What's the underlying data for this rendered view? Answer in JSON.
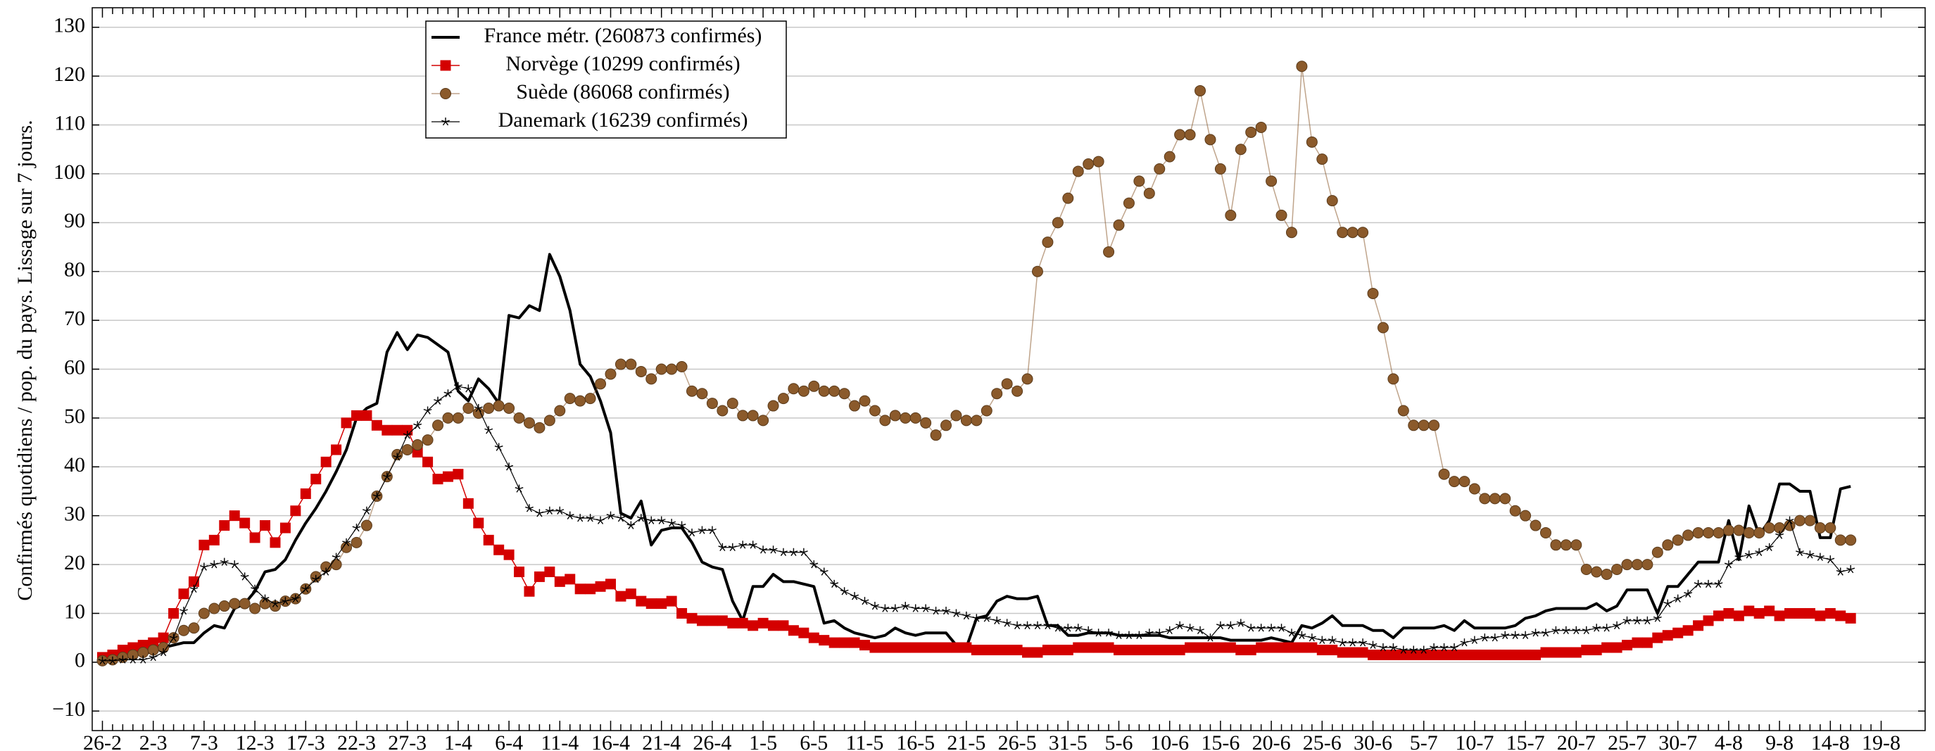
{
  "chart_data": {
    "type": "line",
    "y_label": "Confirmés quotidiens / pop. du pays. Lissage sur 7 jours.",
    "categories": [
      "26-2",
      null,
      null,
      null,
      null,
      "2-3",
      null,
      null,
      null,
      null,
      "7-3",
      null,
      null,
      null,
      null,
      "12-3",
      null,
      null,
      null,
      null,
      "17-3",
      null,
      null,
      null,
      null,
      "22-3",
      null,
      null,
      null,
      null,
      "27-3",
      null,
      null,
      null,
      null,
      "1-4",
      null,
      null,
      null,
      null,
      "6-4",
      null,
      null,
      null,
      null,
      "11-4",
      null,
      null,
      null,
      null,
      "16-4",
      null,
      null,
      null,
      null,
      "21-4",
      null,
      null,
      null,
      null,
      "26-4",
      null,
      null,
      null,
      null,
      "1-5",
      null,
      null,
      null,
      null,
      "6-5",
      null,
      null,
      null,
      null,
      "11-5",
      null,
      null,
      null,
      null,
      "16-5",
      null,
      null,
      null,
      null,
      "21-5",
      null,
      null,
      null,
      null,
      "26-5",
      null,
      null,
      null,
      null,
      "31-5",
      null,
      null,
      null,
      null,
      "5-6",
      null,
      null,
      null,
      null,
      "10-6",
      null,
      null,
      null,
      null,
      "15-6",
      null,
      null,
      null,
      null,
      "20-6",
      null,
      null,
      null,
      null,
      "25-6",
      null,
      null,
      null,
      null,
      "30-6",
      null,
      null,
      null,
      null,
      "5-7",
      null,
      null,
      null,
      null,
      "10-7",
      null,
      null,
      null,
      null,
      "15-7",
      null,
      null,
      null,
      null,
      "20-7",
      null,
      null,
      null,
      null,
      "25-7",
      null,
      null,
      null,
      null,
      "30-7",
      null,
      null,
      null,
      null,
      "4-8",
      null,
      null,
      null,
      null,
      "9-8",
      null,
      null,
      null,
      null,
      "14-8",
      null,
      null,
      null,
      null,
      "19-8"
    ],
    "series": [
      {
        "name": "France métr. (260873 confirmés)",
        "color": "#000000",
        "marker": "none",
        "line_width": 4,
        "values": [
          0.3,
          0.5,
          1,
          1.5,
          2,
          2,
          3,
          3.5,
          4,
          4,
          6,
          7.5,
          7,
          11,
          12,
          14.5,
          18.5,
          19,
          21,
          25,
          28.5,
          31.5,
          35,
          39,
          43.5,
          50,
          52,
          53,
          63.5,
          67.5,
          64,
          67,
          66.5,
          65,
          63.5,
          55.5,
          53.5,
          58,
          56,
          53,
          71,
          70.5,
          73,
          72,
          83.5,
          79,
          72,
          61,
          58.5,
          53.5,
          47,
          30.5,
          29.5,
          33,
          24,
          27,
          27.5,
          27.5,
          24.5,
          20.5,
          19.5,
          19,
          12.5,
          8.5,
          15.5,
          15.5,
          18,
          16.5,
          16.5,
          16,
          15.5,
          8,
          8.5,
          7,
          6,
          5.5,
          5,
          5.5,
          7,
          6,
          5.5,
          6,
          6,
          6,
          3.5,
          3,
          9,
          9.5,
          12.5,
          13.5,
          13,
          13,
          13.5,
          7.5,
          7.5,
          5.5,
          5.5,
          6,
          6,
          6,
          5.5,
          5.5,
          5.5,
          5.5,
          5.5,
          5,
          5,
          5,
          5,
          5,
          5,
          4.5,
          4.5,
          4.5,
          4.5,
          5,
          4.5,
          4,
          7.5,
          7,
          8,
          9.5,
          7.5,
          7.5,
          7.5,
          6.5,
          6.5,
          5,
          7,
          7,
          7,
          7,
          7.5,
          6.5,
          8.5,
          7,
          7,
          7,
          7,
          7.5,
          9,
          9.5,
          10.5,
          11,
          11,
          11,
          11,
          12,
          10.5,
          11.5,
          14.8,
          14.8,
          14.8,
          10,
          15.5,
          15.5,
          18,
          20.5,
          20.5,
          20.5,
          29,
          21,
          32,
          26,
          29,
          36.5,
          36.5,
          35,
          35,
          25.5,
          25.5,
          35.5,
          36,
          null,
          null,
          null
        ]
      },
      {
        "name": "Norvège (10299 confirmés)",
        "color": "#d40000",
        "marker": "square",
        "line_width": 1.5,
        "values": [
          1,
          1.5,
          2.5,
          3,
          3.5,
          4,
          5,
          10,
          14,
          16.5,
          24,
          25,
          28,
          30,
          28.5,
          25.5,
          28,
          24.5,
          27.5,
          31,
          34.5,
          37.5,
          41,
          43.5,
          49,
          50.5,
          50.5,
          48.5,
          47.5,
          47.5,
          47.5,
          43,
          41,
          37.5,
          38,
          38.5,
          32.5,
          28.5,
          25,
          23,
          22,
          18.5,
          14.5,
          17.5,
          18.5,
          16.5,
          17,
          15,
          15,
          15.5,
          16,
          13.5,
          14,
          12.5,
          12,
          12,
          12.5,
          10,
          9,
          8.5,
          8.5,
          8.5,
          8,
          8,
          7.5,
          8,
          7.5,
          7.5,
          6.5,
          6,
          5,
          4.5,
          4,
          4,
          4,
          3.5,
          3,
          3,
          3,
          3,
          3,
          3,
          3,
          3,
          3,
          3,
          2.5,
          2.5,
          2.5,
          2.5,
          2.5,
          2,
          2,
          2.5,
          2.5,
          2.5,
          3,
          3,
          3,
          3,
          2.5,
          2.5,
          2.5,
          2.5,
          2.5,
          2.5,
          2.5,
          3,
          3,
          3,
          3,
          3,
          2.5,
          2.5,
          3,
          3,
          3,
          3,
          3,
          3,
          2.5,
          2.5,
          2,
          2,
          2,
          1.5,
          1.5,
          1.5,
          1.5,
          1.5,
          1.5,
          1.5,
          1.5,
          1.5,
          1.5,
          1.5,
          1.5,
          1.5,
          1.5,
          1.5,
          1.5,
          1.5,
          2,
          2,
          2,
          2,
          2.5,
          2.5,
          3,
          3,
          3.5,
          4,
          4,
          5,
          5.5,
          6,
          6.5,
          7.5,
          8.5,
          9.5,
          10,
          9.5,
          10.5,
          10,
          10.5,
          9.5,
          10,
          10,
          10,
          9.5,
          10,
          9.5,
          9,
          null,
          null,
          null
        ]
      },
      {
        "name": "Suède (86068 confirmés)",
        "color": "#8b5a2b",
        "marker": "circle",
        "line_width": 1.5,
        "values": [
          0.3,
          0.5,
          1,
          1.5,
          2,
          2.5,
          3,
          5,
          6.5,
          7,
          10,
          11,
          11.5,
          12,
          12,
          11,
          12,
          11.5,
          12.5,
          13,
          15,
          17.5,
          19.5,
          20,
          23.5,
          24.5,
          28,
          34,
          38,
          42.5,
          43.5,
          44.5,
          45.5,
          48.5,
          50,
          50,
          52,
          51,
          52,
          52.5,
          52,
          50,
          49,
          48,
          49.5,
          51.5,
          54,
          53.5,
          54,
          57,
          59,
          61,
          61,
          59.5,
          58,
          60,
          60,
          60.5,
          55.5,
          55,
          53,
          51.5,
          53,
          50.5,
          50.5,
          49.5,
          52.5,
          54,
          56,
          55.5,
          56.5,
          55.5,
          55.5,
          55,
          52.5,
          53.5,
          51.5,
          49.5,
          50.5,
          50,
          50,
          49,
          46.5,
          48.5,
          50.5,
          49.5,
          49.5,
          51.5,
          55,
          57,
          55.5,
          58,
          80,
          86,
          90,
          95,
          100.5,
          102,
          102.5,
          84,
          89.5,
          94,
          98.5,
          96,
          101,
          103.5,
          108,
          108,
          117,
          107,
          101,
          91.5,
          105,
          108.5,
          109.5,
          98.5,
          91.5,
          88,
          122,
          106.5,
          103,
          94.5,
          88,
          88,
          88,
          75.5,
          68.5,
          58,
          51.5,
          48.5,
          48.5,
          48.5,
          38.5,
          37,
          37,
          35.5,
          33.5,
          33.5,
          33.5,
          31,
          30,
          28,
          26.5,
          24,
          24,
          24,
          19,
          18.5,
          18,
          19,
          20,
          20,
          20,
          22.5,
          24,
          25,
          26,
          26.5,
          26.5,
          26.5,
          27,
          27,
          26.5,
          26.5,
          27.5,
          27.5,
          28,
          29,
          29,
          27.5,
          27.5,
          25,
          25,
          null,
          null,
          null
        ]
      },
      {
        "name": "Danemark (16239 confirmés)",
        "color": "#000000",
        "marker": "star",
        "line_width": 1.2,
        "values": [
          0.3,
          0.3,
          0.5,
          0.5,
          0.5,
          1,
          2,
          5,
          10.5,
          15,
          19.5,
          20,
          20.5,
          20,
          17.5,
          15,
          13,
          12,
          12.5,
          13,
          15,
          17,
          18.5,
          21.5,
          24.5,
          27.5,
          31,
          34,
          38,
          42,
          46.5,
          48.5,
          51.5,
          53.5,
          55,
          56.5,
          56,
          52,
          47.5,
          44,
          40,
          35.5,
          31.5,
          30.5,
          31,
          31,
          30,
          29.5,
          29.5,
          29,
          30,
          29.5,
          28,
          29.5,
          29,
          29,
          28.5,
          28,
          26.5,
          27,
          27,
          23.5,
          23.5,
          24,
          24,
          23,
          23,
          22.5,
          22.5,
          22.5,
          20,
          18.5,
          16,
          14.5,
          13.5,
          12.5,
          11.5,
          11,
          11,
          11.5,
          11,
          11,
          10.5,
          10.5,
          10,
          9.5,
          9,
          9,
          8.5,
          8,
          7.5,
          7.5,
          7.5,
          7.5,
          7,
          7,
          7,
          6.5,
          6,
          6,
          5.5,
          5.5,
          5.5,
          6,
          6,
          6.5,
          7.5,
          7,
          6.5,
          5,
          7.5,
          7.5,
          8,
          7,
          7,
          7,
          7,
          6,
          5.5,
          5,
          4.5,
          4.5,
          4,
          4,
          4,
          3.5,
          3,
          3,
          2.5,
          2.5,
          2.5,
          3,
          3,
          3,
          4,
          4.5,
          5,
          5,
          5.5,
          5.5,
          5.5,
          6,
          6,
          6.5,
          6.5,
          6.5,
          6.5,
          7,
          7,
          7.5,
          8.5,
          8.5,
          8.5,
          9,
          12,
          13,
          14,
          16,
          16,
          16,
          20,
          21.5,
          22,
          22.5,
          23.5,
          26,
          29,
          22.5,
          22,
          21.5,
          21,
          18.5,
          19,
          null,
          null,
          null
        ]
      }
    ],
    "ylim": [
      -14,
      134
    ],
    "yticks": [
      {
        "value": -10,
        "label": "−10"
      },
      0,
      10,
      20,
      30,
      40,
      50,
      60,
      70,
      80,
      90,
      100,
      110,
      120,
      130
    ],
    "grid": true,
    "legend": "upper left"
  }
}
